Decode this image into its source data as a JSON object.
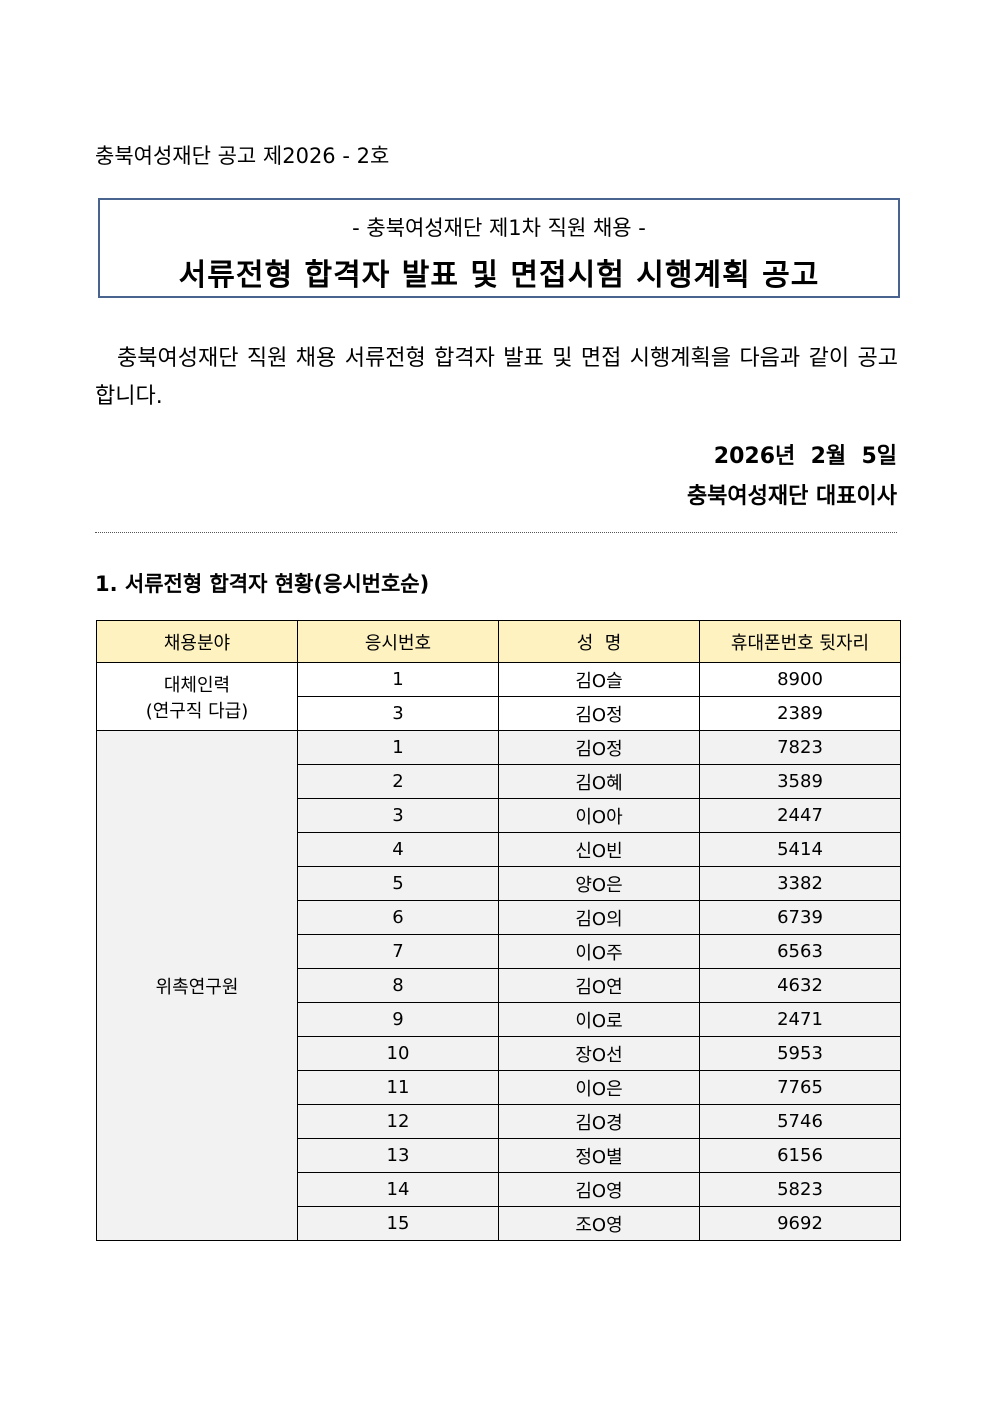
{
  "notice_number": "충북여성재단 공고 제2026 - 2호",
  "subtitle": "- 충북여성재단 제1차 직원 채용 -",
  "title": "서류전형 합격자 발표 및 면접시험 시행계획 공고",
  "paragraph": "충북여성재단 직원 채용 서류전형 합격자 발표 및 면접 시행계획을 다음과 같이 공고합니다.",
  "date": "2026년  2월  5일",
  "signer": "충북여성재단 대표이사",
  "section_heading": "1. 서류전형 합격자 현황(응시번호순)",
  "table": {
    "header_color": "#fef2c0",
    "group_fill_color": "#f2f2f2",
    "columns": [
      "채용분야",
      "응시번호",
      "성  명",
      "휴대폰번호 뒷자리"
    ],
    "groups": [
      {
        "field": "대체인력\n(연구직 다급)",
        "rows": [
          [
            "1",
            "김O슬",
            "8900"
          ],
          [
            "3",
            "김O정",
            "2389"
          ]
        ]
      },
      {
        "field": "위촉연구원",
        "rows": [
          [
            "1",
            "김O정",
            "7823"
          ],
          [
            "2",
            "김O혜",
            "3589"
          ],
          [
            "3",
            "이O아",
            "2447"
          ],
          [
            "4",
            "신O빈",
            "5414"
          ],
          [
            "5",
            "양O은",
            "3382"
          ],
          [
            "6",
            "김O의",
            "6739"
          ],
          [
            "7",
            "이O주",
            "6563"
          ],
          [
            "8",
            "김O연",
            "4632"
          ],
          [
            "9",
            "이O로",
            "2471"
          ],
          [
            "10",
            "장O선",
            "5953"
          ],
          [
            "11",
            "이O은",
            "7765"
          ],
          [
            "12",
            "김O경",
            "5746"
          ],
          [
            "13",
            "정O별",
            "6156"
          ],
          [
            "14",
            "김O영",
            "5823"
          ],
          [
            "15",
            "조O영",
            "9692"
          ]
        ]
      }
    ]
  }
}
